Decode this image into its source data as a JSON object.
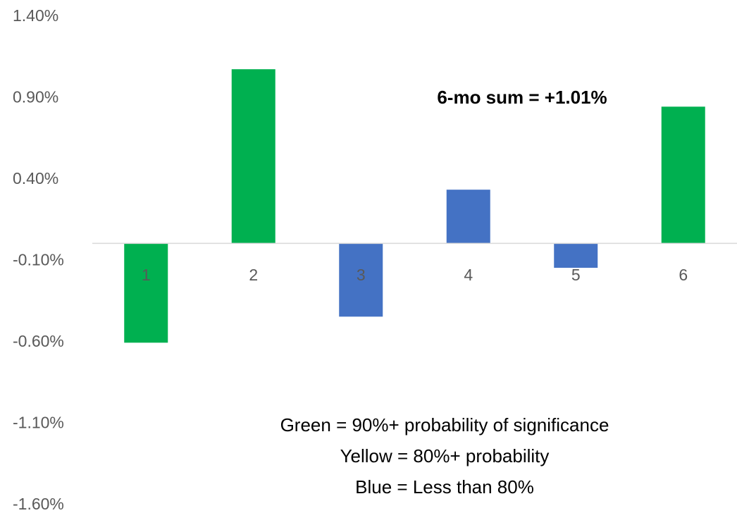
{
  "chart_data": {
    "type": "bar",
    "categories": [
      "1",
      "2",
      "3",
      "4",
      "5",
      "6"
    ],
    "values": [
      -0.61,
      1.07,
      -0.45,
      0.33,
      -0.15,
      0.84
    ],
    "bar_colors": [
      "#00B050",
      "#00B050",
      "#4472C4",
      "#4472C4",
      "#4472C4",
      "#00B050"
    ],
    "yticks": [
      "1.40%",
      "0.90%",
      "0.40%",
      "-0.10%",
      "-0.60%",
      "-1.10%",
      "-1.60%"
    ],
    "ylim": [
      -1.6,
      1.4
    ],
    "y_unit": "%",
    "grid": false,
    "annotation": "6-mo sum = +1.01%",
    "legend_text": [
      "Green = 90%+ probability of significance",
      "Yellow = 80%+ probability",
      "Blue = Less than 80%"
    ]
  }
}
